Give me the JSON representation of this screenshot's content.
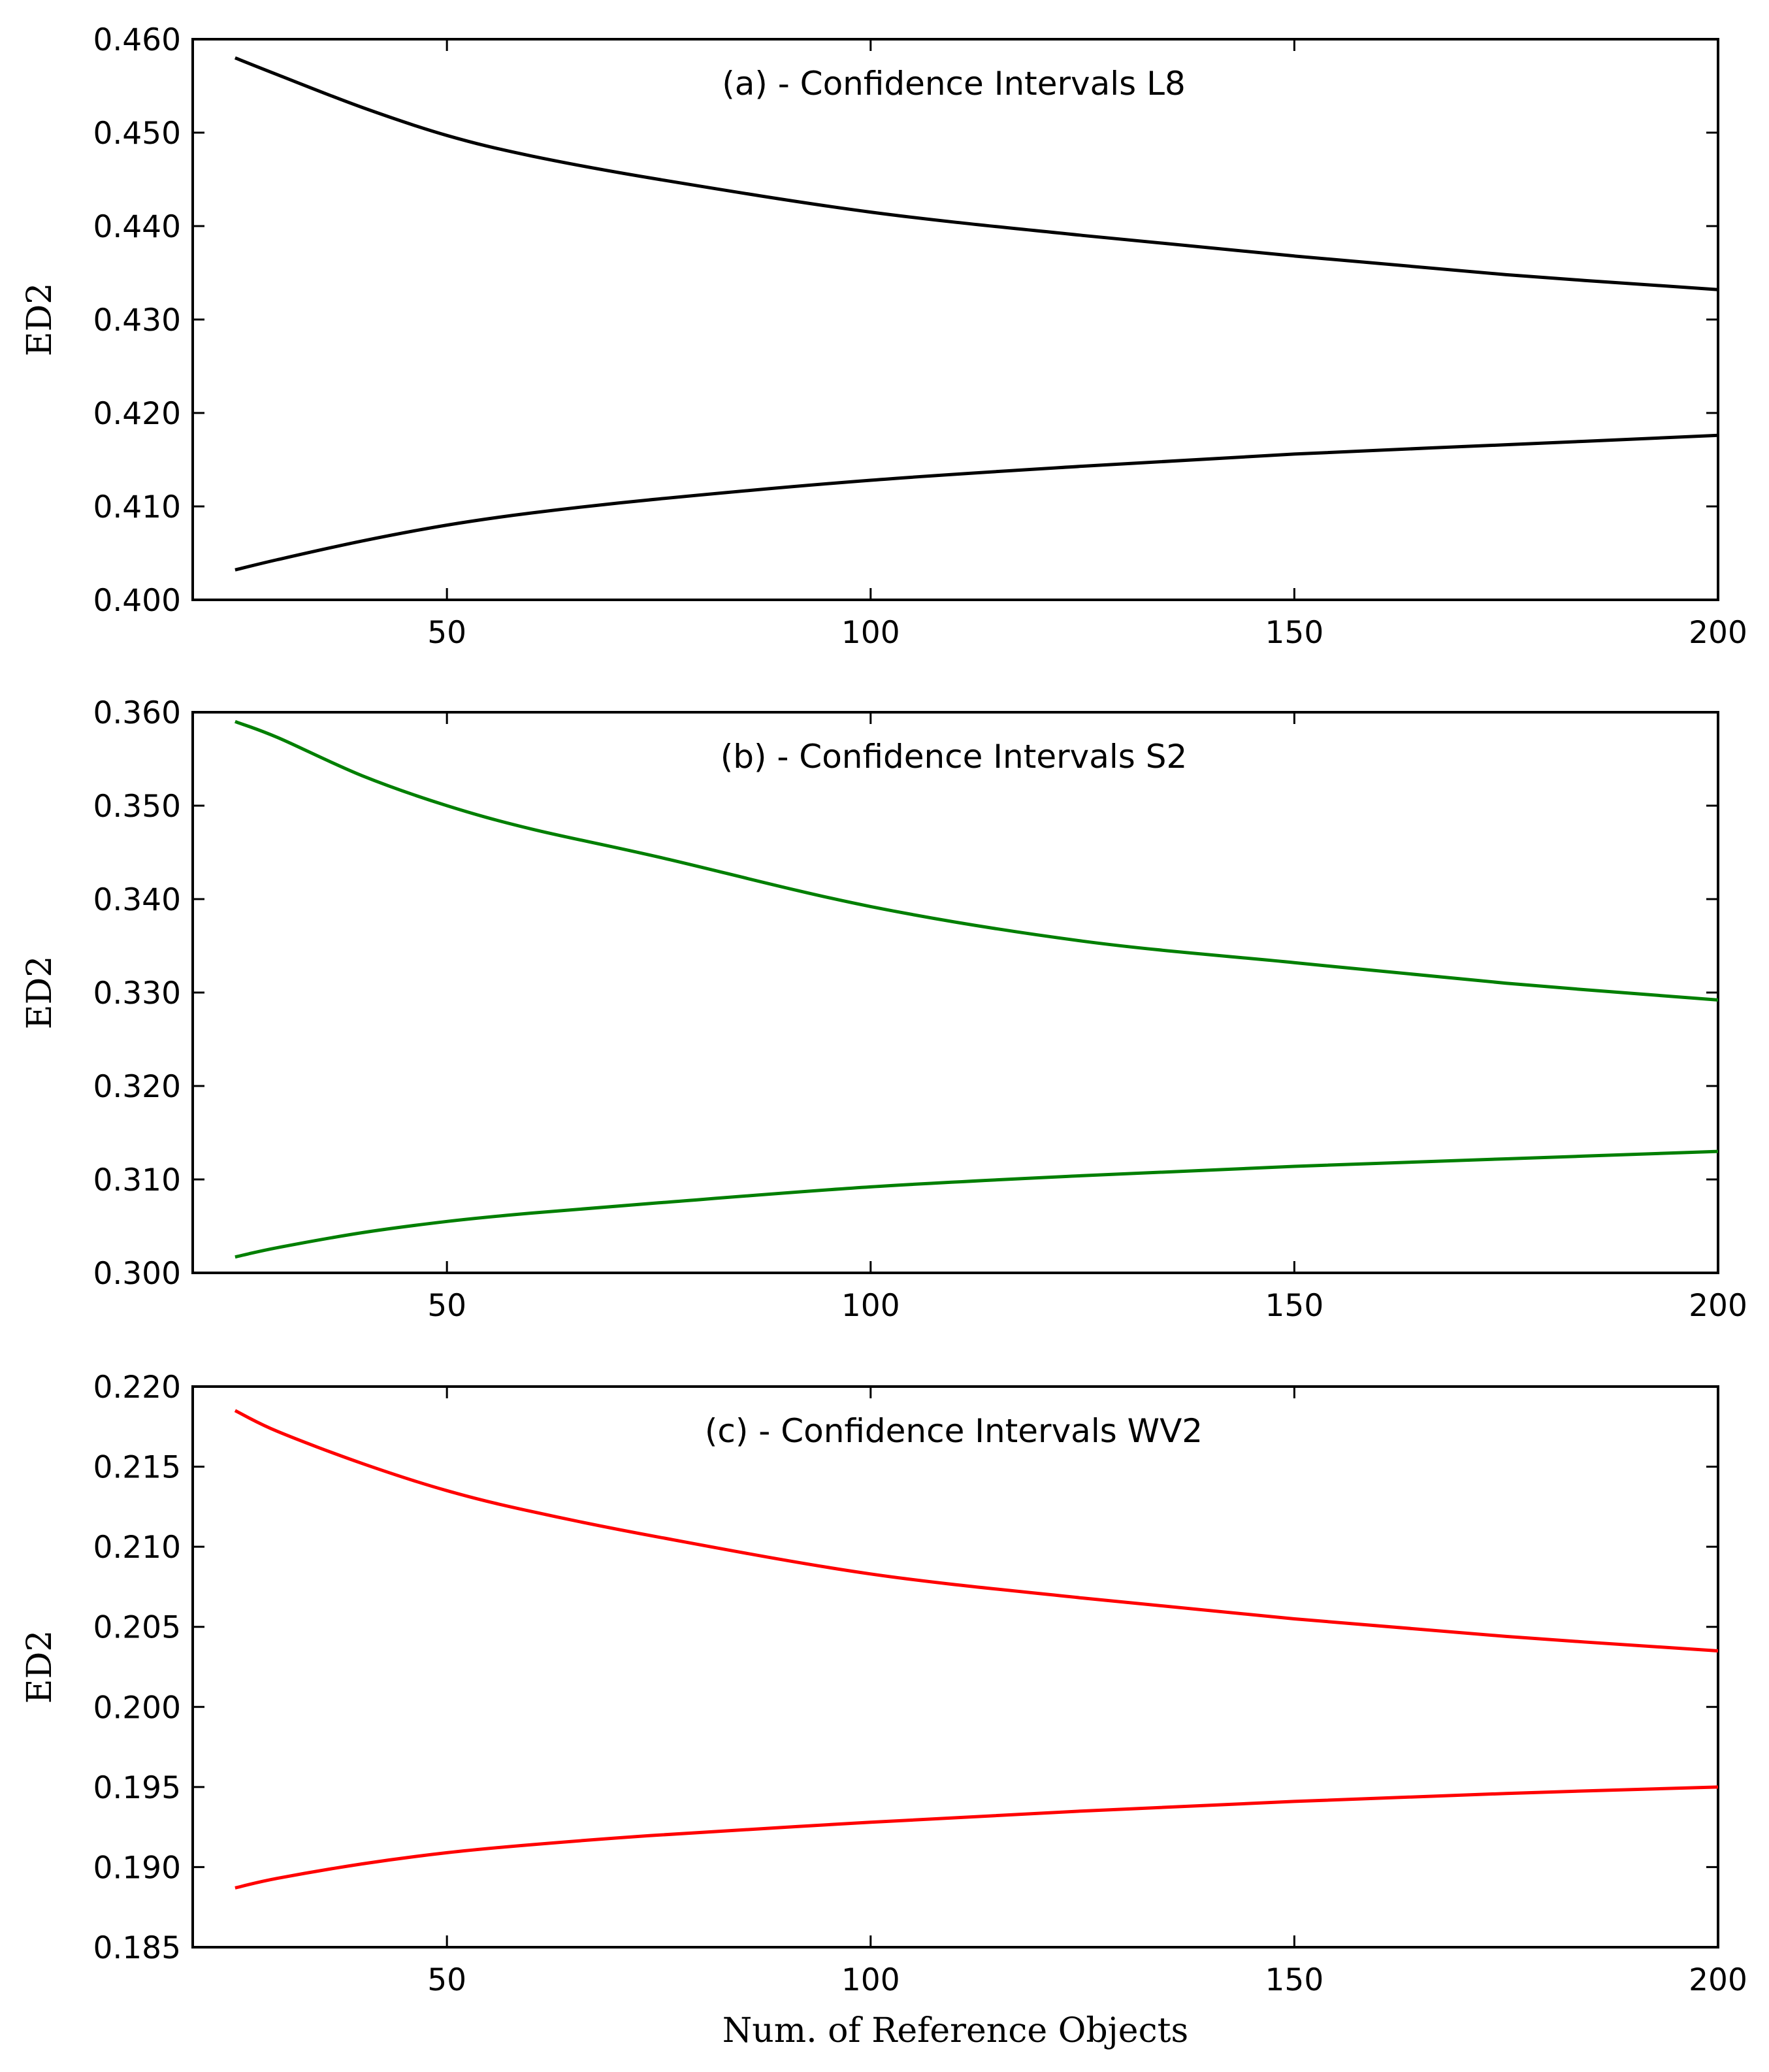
{
  "chart_data": [
    {
      "type": "line",
      "title": "(a) - Confidence Intervals L8",
      "xlabel": "",
      "ylabel": "ED2",
      "xlim": [
        20,
        200
      ],
      "ylim": [
        0.4,
        0.46
      ],
      "xticks": [
        "50",
        "100",
        "150",
        "200"
      ],
      "yticks": [
        "0.400",
        "0.410",
        "0.420",
        "0.430",
        "0.440",
        "0.450",
        "0.460"
      ],
      "color": "#000000",
      "series": [
        {
          "name": "upper",
          "x": [
            25,
            30,
            40,
            50,
            60,
            75,
            100,
            125,
            150,
            175,
            200
          ],
          "values": [
            0.458,
            0.4562,
            0.4527,
            0.4497,
            0.4475,
            0.445,
            0.4415,
            0.439,
            0.4368,
            0.4348,
            0.4332
          ]
        },
        {
          "name": "lower",
          "x": [
            25,
            30,
            40,
            50,
            60,
            75,
            100,
            125,
            150,
            175,
            200
          ],
          "values": [
            0.4032,
            0.4043,
            0.4063,
            0.408,
            0.4093,
            0.4108,
            0.4128,
            0.4143,
            0.4156,
            0.4166,
            0.4176
          ]
        }
      ]
    },
    {
      "type": "line",
      "title": "(b) - Confidence Intervals S2",
      "xlabel": "",
      "ylabel": "ED2",
      "xlim": [
        20,
        200
      ],
      "ylim": [
        0.3,
        0.36
      ],
      "xticks": [
        "50",
        "100",
        "150",
        "200"
      ],
      "yticks": [
        "0.300",
        "0.310",
        "0.320",
        "0.330",
        "0.340",
        "0.350",
        "0.360"
      ],
      "color": "#007f00",
      "series": [
        {
          "name": "upper",
          "x": [
            25,
            30,
            40,
            50,
            60,
            75,
            100,
            125,
            150,
            175,
            200
          ],
          "values": [
            0.359,
            0.3573,
            0.3532,
            0.35,
            0.3475,
            0.3445,
            0.3392,
            0.3355,
            0.3332,
            0.331,
            0.3292
          ]
        },
        {
          "name": "lower",
          "x": [
            25,
            30,
            40,
            50,
            60,
            75,
            100,
            125,
            150,
            175,
            200
          ],
          "values": [
            0.3017,
            0.3027,
            0.3043,
            0.3055,
            0.3064,
            0.3075,
            0.3092,
            0.3104,
            0.3114,
            0.3122,
            0.313
          ]
        }
      ]
    },
    {
      "type": "line",
      "title": "(c) - Confidence Intervals WV2",
      "xlabel": "Num. of Reference Objects",
      "ylabel": "ED2",
      "xlim": [
        20,
        200
      ],
      "ylim": [
        0.185,
        0.22
      ],
      "xticks": [
        "50",
        "100",
        "150",
        "200"
      ],
      "yticks": [
        "0.185",
        "0.190",
        "0.195",
        "0.200",
        "0.205",
        "0.210",
        "0.215",
        "0.220"
      ],
      "color": "#ff0000",
      "series": [
        {
          "name": "upper",
          "x": [
            25,
            30,
            40,
            50,
            60,
            75,
            100,
            125,
            150,
            175,
            200
          ],
          "values": [
            0.2185,
            0.2172,
            0.2152,
            0.2135,
            0.2122,
            0.2106,
            0.2083,
            0.2068,
            0.2055,
            0.2044,
            0.2035
          ]
        },
        {
          "name": "lower",
          "x": [
            25,
            30,
            40,
            50,
            60,
            75,
            100,
            125,
            150,
            175,
            200
          ],
          "values": [
            0.1887,
            0.1893,
            0.1902,
            0.1909,
            0.1914,
            0.192,
            0.1928,
            0.1935,
            0.1941,
            0.1946,
            0.195
          ]
        }
      ]
    }
  ]
}
